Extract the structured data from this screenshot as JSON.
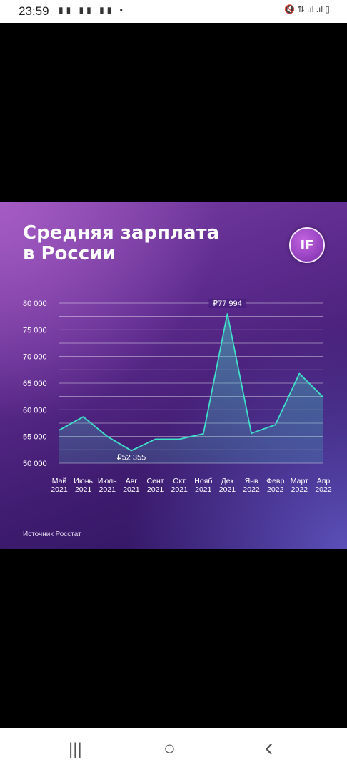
{
  "status_bar": {
    "time": "23:59",
    "notification_icons": "▮▮ ▮▮ ▮▮ •",
    "system_icons": "🔇 ⇅ .ıl .ıl ▯"
  },
  "card": {
    "title_line1": "Средняя зарплата",
    "title_line2": "в России",
    "logo_text": "IF",
    "source": "Источник Росстат"
  },
  "chart_data": {
    "type": "area",
    "title": "Средняя зарплата в России",
    "categories": [
      [
        "Май",
        "2021"
      ],
      [
        "Июнь",
        "2021"
      ],
      [
        "Июль",
        "2021"
      ],
      [
        "Авг",
        "2021"
      ],
      [
        "Сент",
        "2021"
      ],
      [
        "Окт",
        "2021"
      ],
      [
        "Нояб",
        "2021"
      ],
      [
        "Дек",
        "2021"
      ],
      [
        "Янв",
        "2022"
      ],
      [
        "Февр",
        "2022"
      ],
      [
        "Март",
        "2022"
      ],
      [
        "Апр",
        "2022"
      ]
    ],
    "values": [
      56200,
      58700,
      55000,
      52355,
      54500,
      54500,
      55500,
      77994,
      55600,
      57200,
      66800,
      62300
    ],
    "ylim": [
      50000,
      80000
    ],
    "y_ticks": [
      80000,
      75000,
      70000,
      65000,
      60000,
      55000,
      50000
    ],
    "y_tick_labels": [
      "80 000",
      "75 000",
      "70 000",
      "65 000",
      "60 000",
      "55 000",
      "50 000"
    ],
    "annotations": [
      {
        "index": 7,
        "text": "₽77 994"
      },
      {
        "index": 3,
        "text": "₽52 355"
      }
    ],
    "grid": true,
    "line_color": "#3ee0c8",
    "fill_color": "#3ee0c8"
  },
  "nav_bar": {
    "recents": "|||",
    "home": "○",
    "back": "‹"
  }
}
